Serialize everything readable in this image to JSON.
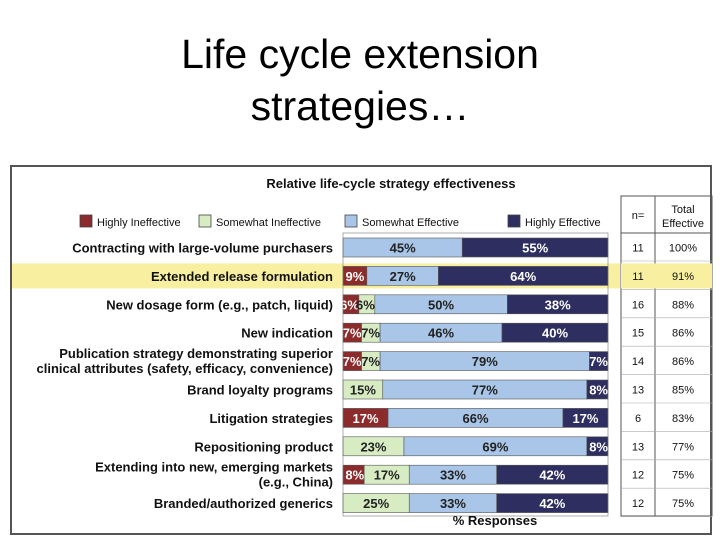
{
  "slide": {
    "title_line1": "Life cycle extension",
    "title_line2": "strategies…"
  },
  "chart_data": {
    "type": "bar",
    "stacked": true,
    "orientation": "horizontal",
    "title": "Relative life-cycle strategy effectiveness",
    "xlabel": "% Responses",
    "xlim": [
      0,
      100
    ],
    "legend_position": "top",
    "highlight_category": "Extended release formulation",
    "categories": [
      [
        "Contracting with large-volume purchasers"
      ],
      [
        "Extended release formulation"
      ],
      [
        "New dosage form (e.g., patch, liquid)"
      ],
      [
        "New indication"
      ],
      [
        "Publication strategy demonstrating superior",
        "clinical attributes (safety, efficacy, convenience)"
      ],
      [
        "Brand loyalty programs"
      ],
      [
        "Litigation strategies"
      ],
      [
        "Repositioning product"
      ],
      [
        "Extending into new, emerging markets",
        "(e.g., China)"
      ],
      [
        "Branded/authorized generics"
      ]
    ],
    "series": [
      {
        "name": "Highly Ineffective",
        "color": "#8b2b2b",
        "text_color": "#ffffff",
        "values": [
          0,
          9,
          6,
          7,
          7,
          0,
          17,
          0,
          8,
          0
        ],
        "labels": [
          "",
          "9%",
          "6%",
          "7%",
          "7%",
          "",
          "17%",
          "",
          "8%",
          ""
        ]
      },
      {
        "name": "Somewhat Ineffective",
        "color": "#d8ecc4",
        "text_color": "#222222",
        "values": [
          0,
          0,
          6,
          7,
          7,
          15,
          0,
          23,
          17,
          25
        ],
        "labels": [
          "",
          "",
          "6%",
          "7%",
          "7%",
          "15%",
          "",
          "23%",
          "17%",
          "25%"
        ]
      },
      {
        "name": "Somewhat Effective",
        "color": "#a9c6e8",
        "text_color": "#222222",
        "values": [
          45,
          27,
          50,
          46,
          79,
          77,
          66,
          69,
          33,
          33
        ],
        "labels": [
          "45%",
          "27%",
          "50%",
          "46%",
          "79%",
          "77%",
          "66%",
          "69%",
          "33%",
          "33%"
        ]
      },
      {
        "name": "Highly Effective",
        "color": "#2e2e60",
        "text_color": "#ffffff",
        "values": [
          55,
          64,
          38,
          40,
          7,
          8,
          17,
          8,
          42,
          42
        ],
        "labels": [
          "55%",
          "64%",
          "38%",
          "40%",
          "7%",
          "8%",
          "17%",
          "8%",
          "42%",
          "42%"
        ]
      }
    ],
    "table": {
      "n_header": "n=",
      "total_header": [
        "Total",
        "Effective"
      ],
      "n": [
        "11",
        "11",
        "16",
        "15",
        "14",
        "13",
        "6",
        "13",
        "12",
        "12"
      ],
      "total": [
        "100%",
        "91%",
        "88%",
        "86%",
        "86%",
        "85%",
        "83%",
        "77%",
        "75%",
        "75%"
      ]
    }
  }
}
